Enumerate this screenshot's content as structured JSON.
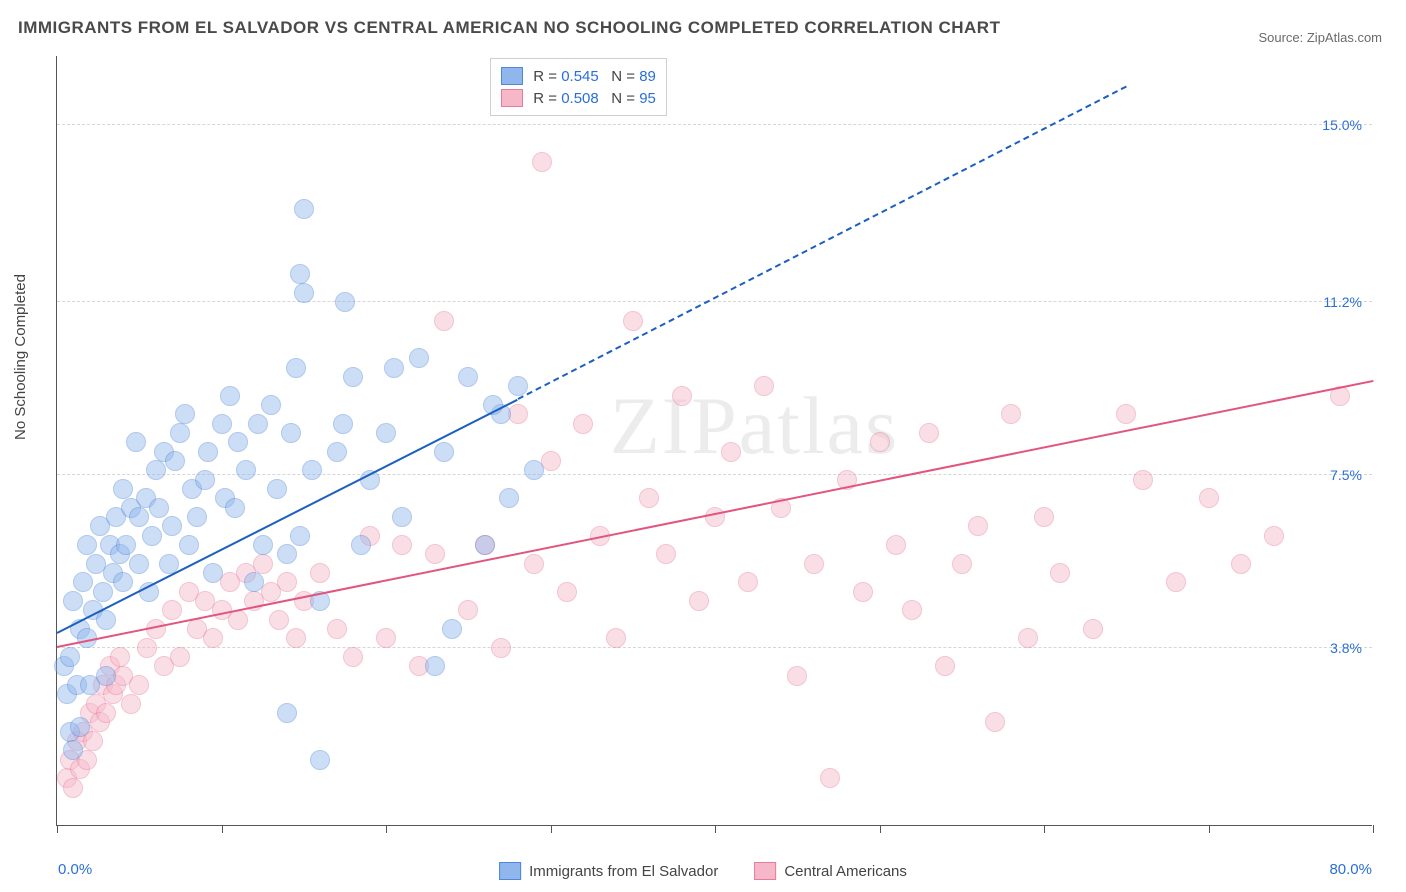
{
  "title": "IMMIGRANTS FROM EL SALVADOR VS CENTRAL AMERICAN NO SCHOOLING COMPLETED CORRELATION CHART",
  "source": "Source: ZipAtlas.com",
  "watermark": "ZIPatlas",
  "yaxis_title": "No Schooling Completed",
  "chart": {
    "type": "scatter",
    "background_color": "#ffffff",
    "grid_color": "#d6d6d6",
    "axis_color": "#555555",
    "text_color": "#444444",
    "value_color": "#2a6fd6",
    "xlim": [
      0,
      80
    ],
    "ylim": [
      0,
      16.5
    ],
    "x_label_min": "0.0%",
    "x_label_max": "80.0%",
    "x_ticks": [
      0,
      10,
      20,
      30,
      40,
      50,
      60,
      70,
      80
    ],
    "y_gridlines": [
      3.8,
      7.5,
      11.2,
      15.0
    ],
    "y_labels": [
      "3.8%",
      "7.5%",
      "11.2%",
      "15.0%"
    ],
    "marker_radius": 10,
    "marker_opacity": 0.45,
    "marker_border_width": 1,
    "trend_line_width": 2.5,
    "title_fontsize": 17,
    "label_fontsize": 15,
    "tick_fontsize": 14
  },
  "series": {
    "blue": {
      "label": "Immigrants from El Salvador",
      "fill_color": "#8fb6ed",
      "stroke_color": "#4f86d8",
      "line_color": "#1b5fc1",
      "r_value": "0.545",
      "n_value": "89",
      "trend": {
        "x1": 0,
        "y1": 4.1,
        "x2": 28,
        "y2": 9.1,
        "dash_to_x": 65,
        "dash_to_y": 15.8
      },
      "points": [
        [
          0.4,
          3.4
        ],
        [
          0.6,
          2.8
        ],
        [
          0.8,
          3.6
        ],
        [
          0.8,
          2.0
        ],
        [
          1.0,
          4.8
        ],
        [
          1.0,
          1.6
        ],
        [
          1.2,
          3.0
        ],
        [
          1.4,
          4.2
        ],
        [
          1.4,
          2.1
        ],
        [
          1.6,
          5.2
        ],
        [
          1.8,
          4.0
        ],
        [
          1.8,
          6.0
        ],
        [
          2.0,
          3.0
        ],
        [
          2.2,
          4.6
        ],
        [
          2.4,
          5.6
        ],
        [
          2.6,
          6.4
        ],
        [
          2.8,
          5.0
        ],
        [
          3.0,
          3.2
        ],
        [
          3.0,
          4.4
        ],
        [
          3.2,
          6.0
        ],
        [
          3.4,
          5.4
        ],
        [
          3.6,
          6.6
        ],
        [
          3.8,
          5.8
        ],
        [
          4.0,
          7.2
        ],
        [
          4.0,
          5.2
        ],
        [
          4.2,
          6.0
        ],
        [
          4.5,
          6.8
        ],
        [
          4.8,
          8.2
        ],
        [
          5.0,
          5.6
        ],
        [
          5.0,
          6.6
        ],
        [
          5.4,
          7.0
        ],
        [
          5.6,
          5.0
        ],
        [
          5.8,
          6.2
        ],
        [
          6.0,
          7.6
        ],
        [
          6.2,
          6.8
        ],
        [
          6.5,
          8.0
        ],
        [
          6.8,
          5.6
        ],
        [
          7.0,
          6.4
        ],
        [
          7.2,
          7.8
        ],
        [
          7.5,
          8.4
        ],
        [
          7.8,
          8.8
        ],
        [
          8.0,
          6.0
        ],
        [
          8.2,
          7.2
        ],
        [
          8.5,
          6.6
        ],
        [
          9.0,
          7.4
        ],
        [
          9.2,
          8.0
        ],
        [
          9.5,
          5.4
        ],
        [
          10.0,
          8.6
        ],
        [
          10.2,
          7.0
        ],
        [
          10.5,
          9.2
        ],
        [
          10.8,
          6.8
        ],
        [
          11.0,
          8.2
        ],
        [
          11.5,
          7.6
        ],
        [
          12.0,
          5.2
        ],
        [
          12.2,
          8.6
        ],
        [
          12.5,
          6.0
        ],
        [
          13.0,
          9.0
        ],
        [
          13.4,
          7.2
        ],
        [
          14.0,
          2.4
        ],
        [
          14.0,
          5.8
        ],
        [
          14.2,
          8.4
        ],
        [
          14.5,
          9.8
        ],
        [
          14.8,
          6.2
        ],
        [
          15.0,
          11.4
        ],
        [
          15.0,
          13.2
        ],
        [
          15.5,
          7.6
        ],
        [
          16.0,
          1.4
        ],
        [
          16.0,
          4.8
        ],
        [
          17.0,
          8.0
        ],
        [
          17.4,
          8.6
        ],
        [
          18.0,
          9.6
        ],
        [
          18.5,
          6.0
        ],
        [
          19.0,
          7.4
        ],
        [
          20.0,
          8.4
        ],
        [
          20.5,
          9.8
        ],
        [
          21.0,
          6.6
        ],
        [
          22.0,
          10.0
        ],
        [
          23.0,
          3.4
        ],
        [
          23.5,
          8.0
        ],
        [
          25.0,
          9.6
        ],
        [
          26.0,
          6.0
        ],
        [
          27.0,
          8.8
        ],
        [
          28.0,
          9.4
        ],
        [
          29.0,
          7.6
        ],
        [
          24.0,
          4.2
        ],
        [
          26.5,
          9.0
        ],
        [
          27.5,
          7.0
        ],
        [
          14.8,
          11.8
        ],
        [
          17.5,
          11.2
        ]
      ]
    },
    "pink": {
      "label": "Central Americans",
      "fill_color": "#f6b8c8",
      "stroke_color": "#e77b9a",
      "line_color": "#e2557e",
      "r_value": "0.508",
      "n_value": "95",
      "trend": {
        "x1": 0,
        "y1": 3.8,
        "x2": 80,
        "y2": 9.5,
        "dash_to_x": 80,
        "dash_to_y": 9.5
      },
      "points": [
        [
          0.6,
          1.0
        ],
        [
          0.8,
          1.4
        ],
        [
          1.0,
          0.8
        ],
        [
          1.2,
          1.8
        ],
        [
          1.4,
          1.2
        ],
        [
          1.6,
          2.0
        ],
        [
          1.8,
          1.4
        ],
        [
          2.0,
          2.4
        ],
        [
          2.2,
          1.8
        ],
        [
          2.4,
          2.6
        ],
        [
          2.6,
          2.2
        ],
        [
          2.8,
          3.0
        ],
        [
          3.0,
          2.4
        ],
        [
          3.2,
          3.4
        ],
        [
          3.4,
          2.8
        ],
        [
          3.6,
          3.0
        ],
        [
          3.8,
          3.6
        ],
        [
          4.0,
          3.2
        ],
        [
          4.5,
          2.6
        ],
        [
          5.0,
          3.0
        ],
        [
          5.5,
          3.8
        ],
        [
          6.0,
          4.2
        ],
        [
          6.5,
          3.4
        ],
        [
          7.0,
          4.6
        ],
        [
          7.5,
          3.6
        ],
        [
          8.0,
          5.0
        ],
        [
          8.5,
          4.2
        ],
        [
          9.0,
          4.8
        ],
        [
          9.5,
          4.0
        ],
        [
          10.0,
          4.6
        ],
        [
          10.5,
          5.2
        ],
        [
          11.0,
          4.4
        ],
        [
          11.5,
          5.4
        ],
        [
          12.0,
          4.8
        ],
        [
          12.5,
          5.6
        ],
        [
          13.0,
          5.0
        ],
        [
          13.5,
          4.4
        ],
        [
          14.0,
          5.2
        ],
        [
          14.5,
          4.0
        ],
        [
          15.0,
          4.8
        ],
        [
          16.0,
          5.4
        ],
        [
          17.0,
          4.2
        ],
        [
          18.0,
          3.6
        ],
        [
          19.0,
          6.2
        ],
        [
          20.0,
          4.0
        ],
        [
          21.0,
          6.0
        ],
        [
          22.0,
          3.4
        ],
        [
          23.0,
          5.8
        ],
        [
          23.5,
          10.8
        ],
        [
          25.0,
          4.6
        ],
        [
          26.0,
          6.0
        ],
        [
          27.0,
          3.8
        ],
        [
          28.0,
          8.8
        ],
        [
          29.0,
          5.6
        ],
        [
          29.5,
          14.2
        ],
        [
          30.0,
          7.8
        ],
        [
          31.0,
          5.0
        ],
        [
          32.0,
          8.6
        ],
        [
          33.0,
          6.2
        ],
        [
          34.0,
          4.0
        ],
        [
          35.0,
          10.8
        ],
        [
          36.0,
          7.0
        ],
        [
          37.0,
          5.8
        ],
        [
          38.0,
          9.2
        ],
        [
          39.0,
          4.8
        ],
        [
          40.0,
          6.6
        ],
        [
          41.0,
          8.0
        ],
        [
          42.0,
          5.2
        ],
        [
          43.0,
          9.4
        ],
        [
          44.0,
          6.8
        ],
        [
          45.0,
          3.2
        ],
        [
          46.0,
          5.6
        ],
        [
          47.0,
          1.0
        ],
        [
          48.0,
          7.4
        ],
        [
          49.0,
          5.0
        ],
        [
          50.0,
          8.2
        ],
        [
          51.0,
          6.0
        ],
        [
          52.0,
          4.6
        ],
        [
          53.0,
          8.4
        ],
        [
          54.0,
          3.4
        ],
        [
          55.0,
          5.6
        ],
        [
          56.0,
          6.4
        ],
        [
          57.0,
          2.2
        ],
        [
          58.0,
          8.8
        ],
        [
          61.0,
          5.4
        ],
        [
          63.0,
          4.2
        ],
        [
          65.0,
          8.8
        ],
        [
          66.0,
          7.4
        ],
        [
          68.0,
          5.2
        ],
        [
          70.0,
          7.0
        ],
        [
          72.0,
          5.6
        ],
        [
          78.0,
          9.2
        ],
        [
          74.0,
          6.2
        ],
        [
          59.0,
          4.0
        ],
        [
          60.0,
          6.6
        ]
      ]
    }
  },
  "legend_top": {
    "r_label": "R =",
    "n_label": "N ="
  },
  "legend_bottom": {
    "items": [
      "blue",
      "pink"
    ]
  }
}
